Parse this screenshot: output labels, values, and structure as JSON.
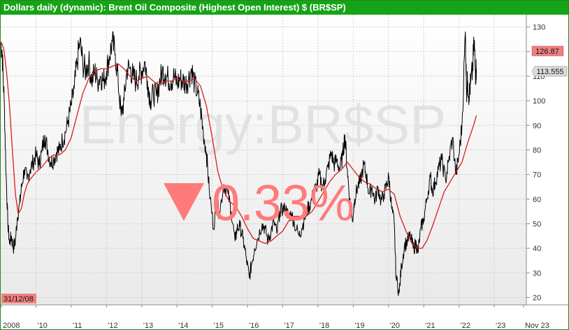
{
  "header": {
    "title": "Dollars daily (dynamic): Brent Oil Composite (Highest Open Interest) $ (BR$SP)"
  },
  "watermark": {
    "symbol": "Energy:BR$SP",
    "change": "0.33%",
    "direction": "down",
    "color": "#ff6f6f"
  },
  "colors": {
    "title_bar": "#17a317",
    "price_line": "#000000",
    "moving_average": "#d81d1d",
    "last_price_badge": "#f08080"
  },
  "labels": {
    "start_date": "31/12/08",
    "last_price": "126.87",
    "moving_avg_value": "113.555"
  },
  "chart_data": {
    "type": "line",
    "title": "Dollars daily (dynamic): Brent Oil Composite (Highest Open Interest) $ (BR$SP)",
    "xlabel": "",
    "ylabel": "",
    "x_tick_labels": [
      "2008",
      "'10",
      "'11",
      "'12",
      "'13",
      "'14",
      "'15",
      "'16",
      "'17",
      "'18",
      "'19",
      "'20",
      "'21",
      "'22",
      "'23",
      "Nov 23"
    ],
    "y_ticks": [
      20,
      30,
      40,
      50,
      60,
      70,
      80,
      90,
      100,
      110,
      120,
      130
    ],
    "ylim": [
      17,
      135
    ],
    "xlim": [
      "2008-12-31",
      "2023-11-30"
    ],
    "grid": true,
    "series": [
      {
        "style": "price",
        "points": [
          [
            "2008-12-31",
            124
          ],
          [
            "2009-01-15",
            120
          ],
          [
            "2009-02-05",
            100
          ],
          [
            "2009-02-25",
            70
          ],
          [
            "2009-03-15",
            50
          ],
          [
            "2009-04-01",
            42
          ],
          [
            "2009-04-20",
            45
          ],
          [
            "2009-05-10",
            40
          ],
          [
            "2009-06-01",
            43
          ],
          [
            "2009-06-20",
            52
          ],
          [
            "2009-07-15",
            58
          ],
          [
            "2009-08-05",
            65
          ],
          [
            "2009-09-01",
            72
          ],
          [
            "2009-10-01",
            68
          ],
          [
            "2009-11-01",
            72
          ],
          [
            "2009-12-01",
            75
          ],
          [
            "2010-01-01",
            78
          ],
          [
            "2010-02-01",
            74
          ],
          [
            "2010-03-01",
            79
          ],
          [
            "2010-04-01",
            86
          ],
          [
            "2010-05-01",
            80
          ],
          [
            "2010-06-01",
            75
          ],
          [
            "2010-07-01",
            76
          ],
          [
            "2010-08-01",
            79
          ],
          [
            "2010-09-01",
            80
          ],
          [
            "2010-10-01",
            84
          ],
          [
            "2010-11-01",
            87
          ],
          [
            "2010-12-01",
            92
          ],
          [
            "2011-01-01",
            98
          ],
          [
            "2011-02-01",
            105
          ],
          [
            "2011-03-01",
            115
          ],
          [
            "2011-04-01",
            124
          ],
          [
            "2011-05-01",
            115
          ],
          [
            "2011-06-01",
            112
          ],
          [
            "2011-07-01",
            116
          ],
          [
            "2011-08-01",
            108
          ],
          [
            "2011-09-01",
            112
          ],
          [
            "2011-10-01",
            108
          ],
          [
            "2011-11-01",
            110
          ],
          [
            "2011-12-01",
            108
          ],
          [
            "2012-01-01",
            112
          ],
          [
            "2012-02-01",
            118
          ],
          [
            "2012-03-01",
            124
          ],
          [
            "2012-04-01",
            119
          ],
          [
            "2012-05-01",
            108
          ],
          [
            "2012-06-01",
            94
          ],
          [
            "2012-07-01",
            100
          ],
          [
            "2012-08-01",
            113
          ],
          [
            "2012-09-01",
            113
          ],
          [
            "2012-10-01",
            110
          ],
          [
            "2012-11-01",
            108
          ],
          [
            "2012-12-01",
            110
          ],
          [
            "2013-01-01",
            112
          ],
          [
            "2013-02-01",
            116
          ],
          [
            "2013-03-01",
            108
          ],
          [
            "2013-04-01",
            100
          ],
          [
            "2013-05-01",
            103
          ],
          [
            "2013-06-01",
            102
          ],
          [
            "2013-07-01",
            107
          ],
          [
            "2013-08-01",
            112
          ],
          [
            "2013-09-01",
            111
          ],
          [
            "2013-10-01",
            109
          ],
          [
            "2013-11-01",
            108
          ],
          [
            "2013-12-01",
            110
          ],
          [
            "2014-01-01",
            107
          ],
          [
            "2014-02-01",
            109
          ],
          [
            "2014-03-01",
            108
          ],
          [
            "2014-04-01",
            107
          ],
          [
            "2014-05-01",
            109
          ],
          [
            "2014-06-01",
            113
          ],
          [
            "2014-07-01",
            107
          ],
          [
            "2014-08-01",
            103
          ],
          [
            "2014-09-01",
            97
          ],
          [
            "2014-10-01",
            87
          ],
          [
            "2014-11-01",
            79
          ],
          [
            "2014-12-01",
            64
          ],
          [
            "2015-01-15",
            48
          ],
          [
            "2015-02-15",
            60
          ],
          [
            "2015-03-15",
            54
          ],
          [
            "2015-05-01",
            66
          ],
          [
            "2015-06-15",
            62
          ],
          [
            "2015-07-15",
            55
          ],
          [
            "2015-08-25",
            43
          ],
          [
            "2015-09-15",
            48
          ],
          [
            "2015-10-15",
            49
          ],
          [
            "2015-11-15",
            44
          ],
          [
            "2015-12-15",
            37
          ],
          [
            "2016-01-20",
            28
          ],
          [
            "2016-02-10",
            33
          ],
          [
            "2016-03-15",
            40
          ],
          [
            "2016-04-15",
            44
          ],
          [
            "2016-06-01",
            50
          ],
          [
            "2016-07-01",
            48
          ],
          [
            "2016-08-01",
            43
          ],
          [
            "2016-09-01",
            47
          ],
          [
            "2016-10-01",
            51
          ],
          [
            "2016-11-01",
            46
          ],
          [
            "2016-12-01",
            55
          ],
          [
            "2017-01-01",
            56
          ],
          [
            "2017-02-01",
            56
          ],
          [
            "2017-03-01",
            53
          ],
          [
            "2017-04-01",
            54
          ],
          [
            "2017-05-01",
            50
          ],
          [
            "2017-06-20",
            45
          ],
          [
            "2017-07-15",
            48
          ],
          [
            "2017-08-15",
            52
          ],
          [
            "2017-09-15",
            56
          ],
          [
            "2017-10-15",
            58
          ],
          [
            "2017-11-15",
            63
          ],
          [
            "2017-12-15",
            65
          ],
          [
            "2018-01-15",
            70
          ],
          [
            "2018-02-15",
            65
          ],
          [
            "2018-03-15",
            68
          ],
          [
            "2018-04-15",
            73
          ],
          [
            "2018-05-20",
            79
          ],
          [
            "2018-06-15",
            74
          ],
          [
            "2018-07-15",
            76
          ],
          [
            "2018-08-15",
            72
          ],
          [
            "2018-09-15",
            78
          ],
          [
            "2018-10-05",
            86
          ],
          [
            "2018-11-01",
            72
          ],
          [
            "2018-11-25",
            60
          ],
          [
            "2018-12-24",
            51
          ],
          [
            "2019-01-15",
            60
          ],
          [
            "2019-02-15",
            65
          ],
          [
            "2019-03-15",
            67
          ],
          [
            "2019-04-20",
            74
          ],
          [
            "2019-05-15",
            70
          ],
          [
            "2019-06-15",
            62
          ],
          [
            "2019-07-15",
            65
          ],
          [
            "2019-08-15",
            59
          ],
          [
            "2019-09-15",
            65
          ],
          [
            "2019-10-15",
            59
          ],
          [
            "2019-11-15",
            62
          ],
          [
            "2019-12-15",
            66
          ],
          [
            "2020-01-06",
            69
          ],
          [
            "2020-02-01",
            57
          ],
          [
            "2020-03-01",
            50
          ],
          [
            "2020-03-20",
            28
          ],
          [
            "2020-04-22",
            22
          ],
          [
            "2020-05-15",
            33
          ],
          [
            "2020-06-15",
            41
          ],
          [
            "2020-07-15",
            43
          ],
          [
            "2020-08-15",
            45
          ],
          [
            "2020-09-15",
            40
          ],
          [
            "2020-10-15",
            42
          ],
          [
            "2020-11-01",
            38
          ],
          [
            "2020-12-01",
            48
          ],
          [
            "2021-01-01",
            52
          ],
          [
            "2021-02-01",
            60
          ],
          [
            "2021-03-10",
            69
          ],
          [
            "2021-04-01",
            63
          ],
          [
            "2021-05-01",
            67
          ],
          [
            "2021-06-01",
            72
          ],
          [
            "2021-07-05",
            76
          ],
          [
            "2021-08-15",
            68
          ],
          [
            "2021-09-15",
            75
          ],
          [
            "2021-10-25",
            85
          ],
          [
            "2021-12-01",
            70
          ],
          [
            "2022-01-01",
            78
          ],
          [
            "2022-02-01",
            90
          ],
          [
            "2022-03-08",
            128
          ],
          [
            "2022-03-20",
            104
          ],
          [
            "2022-04-01",
            108
          ],
          [
            "2022-04-15",
            102
          ],
          [
            "2022-05-01",
            107
          ],
          [
            "2022-05-20",
            112
          ],
          [
            "2022-06-08",
            124
          ],
          [
            "2022-06-20",
            111
          ],
          [
            "2022-06-30",
            113
          ]
        ]
      },
      {
        "style": "moving-average",
        "points": [
          [
            "2008-12-31",
            124
          ],
          [
            "2009-01-15",
            123
          ],
          [
            "2009-02-01",
            121
          ],
          [
            "2009-03-01",
            112
          ],
          [
            "2009-04-01",
            98
          ],
          [
            "2009-05-01",
            80
          ],
          [
            "2009-06-01",
            62
          ],
          [
            "2009-07-01",
            54
          ],
          [
            "2009-08-01",
            56
          ],
          [
            "2009-09-01",
            62
          ],
          [
            "2009-10-01",
            66
          ],
          [
            "2009-11-01",
            68
          ],
          [
            "2010-01-01",
            71
          ],
          [
            "2010-03-01",
            73
          ],
          [
            "2010-05-01",
            76
          ],
          [
            "2010-07-01",
            78
          ],
          [
            "2010-09-01",
            78
          ],
          [
            "2010-11-01",
            80
          ],
          [
            "2011-01-01",
            85
          ],
          [
            "2011-03-01",
            94
          ],
          [
            "2011-05-01",
            103
          ],
          [
            "2011-07-01",
            109
          ],
          [
            "2011-09-01",
            112
          ],
          [
            "2011-11-01",
            113
          ],
          [
            "2012-01-01",
            113
          ],
          [
            "2012-03-01",
            114
          ],
          [
            "2012-05-01",
            115
          ],
          [
            "2012-07-01",
            113
          ],
          [
            "2012-09-01",
            110
          ],
          [
            "2012-11-01",
            108
          ],
          [
            "2013-01-01",
            109
          ],
          [
            "2013-03-01",
            110
          ],
          [
            "2013-05-01",
            108
          ],
          [
            "2013-07-01",
            106
          ],
          [
            "2013-09-01",
            108
          ],
          [
            "2013-11-01",
            108
          ],
          [
            "2014-01-01",
            109
          ],
          [
            "2014-03-01",
            108
          ],
          [
            "2014-05-01",
            108
          ],
          [
            "2014-07-01",
            109
          ],
          [
            "2014-09-01",
            106
          ],
          [
            "2014-11-01",
            98
          ],
          [
            "2015-01-01",
            85
          ],
          [
            "2015-03-01",
            71
          ],
          [
            "2015-05-01",
            63
          ],
          [
            "2015-07-01",
            59
          ],
          [
            "2015-09-01",
            57
          ],
          [
            "2015-11-01",
            53
          ],
          [
            "2016-01-01",
            48
          ],
          [
            "2016-03-01",
            44
          ],
          [
            "2016-05-01",
            43
          ],
          [
            "2016-07-01",
            42
          ],
          [
            "2016-09-01",
            43
          ],
          [
            "2016-11-01",
            45
          ],
          [
            "2017-01-01",
            47
          ],
          [
            "2017-03-01",
            51
          ],
          [
            "2017-05-01",
            53
          ],
          [
            "2017-07-01",
            53
          ],
          [
            "2017-09-01",
            53
          ],
          [
            "2017-11-01",
            55
          ],
          [
            "2018-01-01",
            59
          ],
          [
            "2018-03-01",
            63
          ],
          [
            "2018-05-01",
            67
          ],
          [
            "2018-07-01",
            70
          ],
          [
            "2018-09-01",
            72
          ],
          [
            "2018-11-01",
            75
          ],
          [
            "2019-01-01",
            72
          ],
          [
            "2019-03-01",
            69
          ],
          [
            "2019-05-01",
            67
          ],
          [
            "2019-07-01",
            66
          ],
          [
            "2019-09-01",
            64
          ],
          [
            "2019-11-01",
            63
          ],
          [
            "2020-01-01",
            64
          ],
          [
            "2020-03-01",
            62
          ],
          [
            "2020-05-01",
            53
          ],
          [
            "2020-07-01",
            47
          ],
          [
            "2020-09-01",
            42
          ],
          [
            "2020-11-01",
            40
          ],
          [
            "2020-12-15",
            40
          ],
          [
            "2021-02-01",
            43
          ],
          [
            "2021-04-01",
            49
          ],
          [
            "2021-06-01",
            56
          ],
          [
            "2021-08-01",
            63
          ],
          [
            "2021-10-01",
            67
          ],
          [
            "2021-12-01",
            71
          ],
          [
            "2022-02-01",
            75
          ],
          [
            "2022-04-01",
            83
          ],
          [
            "2022-06-01",
            90
          ],
          [
            "2022-06-30",
            94
          ]
        ]
      }
    ]
  }
}
